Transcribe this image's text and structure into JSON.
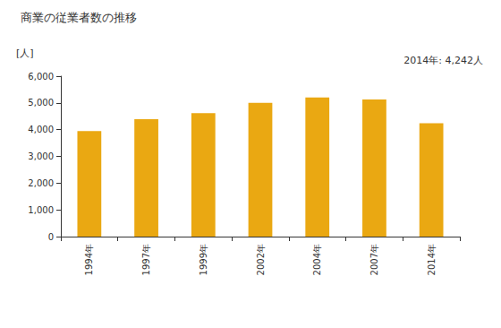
{
  "chart_data": {
    "type": "bar",
    "title": "商業の従業者数の推移",
    "y_label": "[人]",
    "annotation": "2014年: 4,242人",
    "categories": [
      "1994年",
      "1997年",
      "1999年",
      "2002年",
      "2004年",
      "2007年",
      "2014年"
    ],
    "values": [
      3950,
      4390,
      4620,
      5000,
      5200,
      5130,
      4242
    ],
    "color": "#eaa812",
    "ylim": [
      0,
      6000
    ],
    "yticks": [
      0,
      {
        "value": 1000,
        "label": "1,000"
      },
      {
        "value": 2000,
        "label": "2,000"
      },
      {
        "value": 3000,
        "label": "3,000"
      },
      {
        "value": 4000,
        "label": "4,000"
      },
      {
        "value": 5000,
        "label": "5,000"
      },
      {
        "value": 6000,
        "label": "6,000"
      }
    ],
    "grid": false
  }
}
